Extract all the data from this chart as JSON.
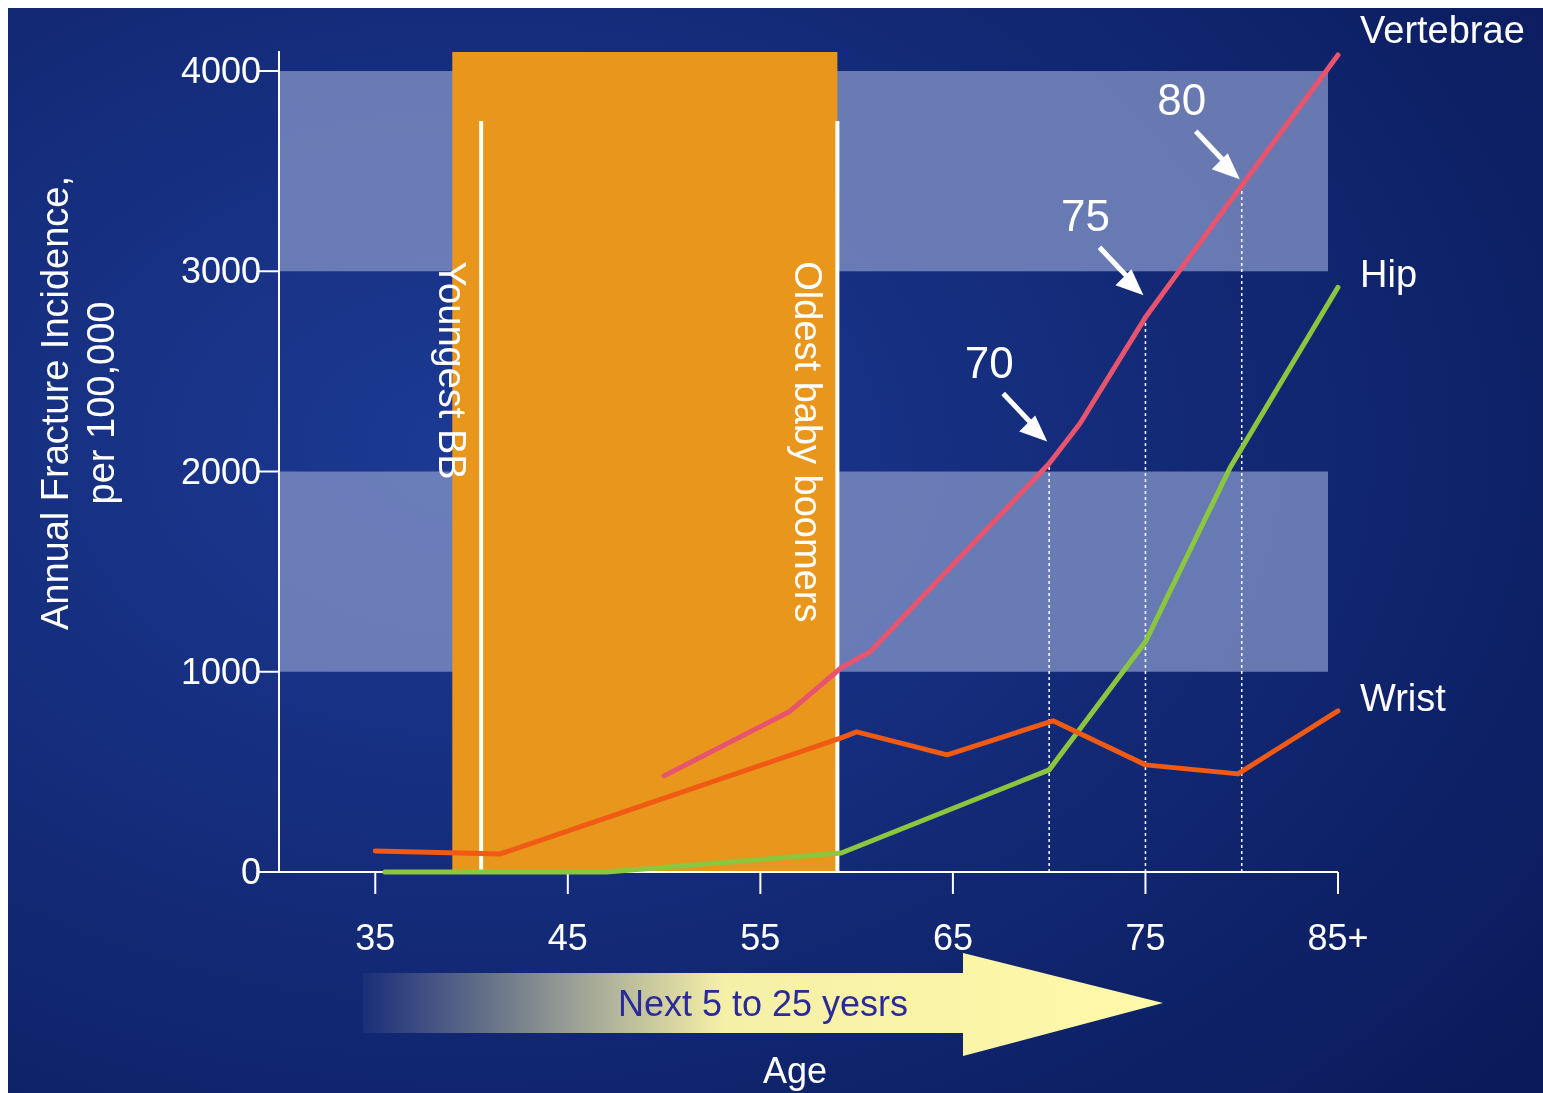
{
  "chart_data": {
    "type": "line",
    "xlabel": "Age",
    "ylabel": "Annual Fracture Incidence,\nper 100,000",
    "xlim": [
      30,
      85
    ],
    "xticks": [
      35,
      45,
      55,
      65,
      75,
      {
        "value": 85,
        "label": "85+"
      }
    ],
    "ylim": [
      0,
      4100
    ],
    "yticks": [
      0,
      1000,
      2000,
      3000,
      4000
    ],
    "grid": false,
    "legend": false,
    "series": [
      {
        "name": "Vertebrae",
        "color": "#e8536e",
        "x": [
          50,
          56.5,
          59.2,
          60.7,
          70,
          71.6,
          75,
          79.4,
          85
        ],
        "values": [
          480,
          800,
          1020,
          1100,
          2040,
          2240,
          2770,
          3350,
          4080
        ]
      },
      {
        "name": "Hip",
        "color": "#8cc63f",
        "x": [
          35.5,
          47,
          59.2,
          70,
          75,
          79.4,
          85
        ],
        "values": [
          0,
          0,
          95,
          510,
          1150,
          2020,
          2920
        ]
      },
      {
        "name": "Wrist",
        "color": "#f05a14",
        "x": [
          35,
          41.5,
          59.2,
          60,
          64.7,
          70.2,
          75,
          79.8,
          85
        ],
        "values": [
          105,
          90,
          670,
          700,
          585,
          755,
          535,
          490,
          805
        ]
      }
    ],
    "bands": [
      {
        "axis": "y",
        "from": 1000,
        "to": 2000,
        "color": "#8595c8"
      },
      {
        "axis": "y",
        "from": 3000,
        "to": 4000,
        "color": "#8595c8"
      },
      {
        "axis": "x",
        "from": 39,
        "to": 59,
        "color": "#e8961c"
      }
    ],
    "ref_lines": [
      {
        "axis": "x",
        "value": 40.5,
        "label": "Youngest BB",
        "line_style": "solid"
      },
      {
        "axis": "x",
        "value": 59,
        "label": "Oldest baby boomers",
        "line_style": "solid"
      },
      {
        "axis": "x",
        "value": 70,
        "line_style": "dotted"
      },
      {
        "axis": "x",
        "value": 75,
        "line_style": "dotted"
      },
      {
        "axis": "x",
        "value": 80,
        "line_style": "dotted"
      }
    ],
    "annotations": [
      {
        "text": "70",
        "x": 70,
        "y": 2040
      },
      {
        "text": "75",
        "x": 75,
        "y": 2770
      },
      {
        "text": "80",
        "x": 80,
        "y": 3350
      },
      "Next 5 to 25 yesrs"
    ]
  }
}
